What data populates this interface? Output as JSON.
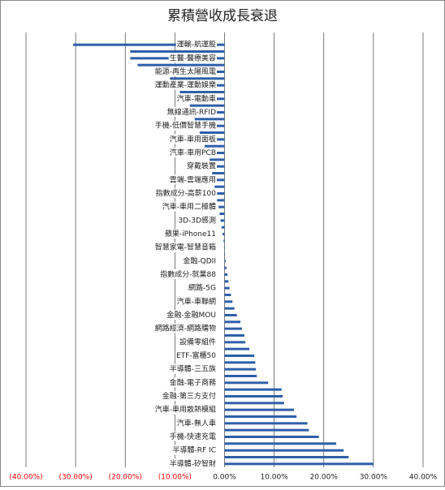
{
  "chart_data": {
    "type": "hbar",
    "title": "累積營收成長衰退",
    "categories": [
      "運輸-航運股",
      null,
      "生醫-醫療美容",
      null,
      "能源-再生太陽風電",
      null,
      "運動產業-運動娛樂",
      null,
      "汽車-電動車",
      null,
      "無線通訊-RFID",
      null,
      "手機-低價智慧手機",
      null,
      "汽車-車用面板",
      null,
      "汽車-車用PCB",
      null,
      "穿戴裝置",
      null,
      "雲端-雲端應用",
      null,
      "指數成分-高薪100",
      null,
      "汽車-車用二極體",
      null,
      "3D-3D感測",
      null,
      "蘋果-iPhone11",
      null,
      "智慧家電-智慧音箱",
      null,
      "金融-QDII",
      null,
      "指數成分-就業88",
      null,
      "網路-5G",
      null,
      "汽車-車聯網",
      null,
      "金融-金融MOU",
      null,
      "網路經濟-網路購物",
      null,
      "設備零組件",
      null,
      "ETF-富櫃50",
      null,
      "半導體-三五族",
      null,
      "金融-電子商務",
      null,
      "金融-第三方支付",
      null,
      "汽車-車用散熱模組",
      null,
      "汽車-無人車",
      null,
      "手機-快速充電",
      null,
      "半導體-RF IC",
      null,
      "半導體-矽智財"
    ],
    "values": [
      -30.5,
      -19.0,
      -19.0,
      -17.5,
      -12.0,
      -11.0,
      -10.0,
      -9.0,
      -8.0,
      -7.0,
      -6.5,
      -6.0,
      -5.5,
      -5.0,
      -4.5,
      -4.0,
      -3.5,
      -3.0,
      -2.8,
      -2.5,
      -2.2,
      -2.0,
      -1.8,
      -1.5,
      -1.2,
      -1.0,
      -0.8,
      -0.6,
      -0.4,
      -0.2,
      -0.1,
      0.1,
      0.2,
      0.4,
      0.6,
      0.8,
      1.0,
      1.3,
      1.6,
      2.0,
      2.5,
      3.2,
      3.5,
      4.0,
      4.2,
      5.0,
      6.0,
      6.2,
      6.3,
      6.5,
      8.8,
      11.5,
      11.7,
      12.0,
      14.0,
      14.5,
      16.7,
      17.0,
      19.0,
      22.5,
      24.0,
      25.0,
      30.0
    ],
    "color": "#2e5fa8",
    "xlim": [
      -40,
      40
    ],
    "xticks": [
      {
        "value": -40,
        "label": "(40.00%)"
      },
      {
        "value": -30,
        "label": "(30.00%)"
      },
      {
        "value": -20,
        "label": "(20.00%)"
      },
      {
        "value": -10,
        "label": "(10.00%)"
      },
      {
        "value": 0,
        "label": "0.00%"
      },
      {
        "value": 10,
        "label": "10.00%"
      },
      {
        "value": 20,
        "label": "20.00%"
      },
      {
        "value": 30,
        "label": "30.00%"
      },
      {
        "value": 40,
        "label": "40.00%"
      }
    ],
    "grid": true,
    "negative_label_color": "#ff0000"
  }
}
